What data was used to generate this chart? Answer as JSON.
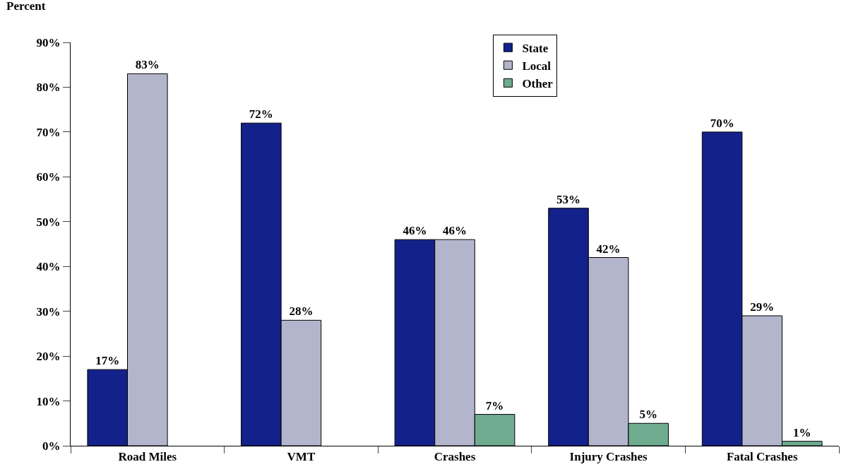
{
  "chart_data": {
    "type": "bar",
    "ylabel": "Percent",
    "categories": [
      "Road Miles",
      "VMT",
      "Crashes",
      "Injury Crashes",
      "Fatal Crashes"
    ],
    "series": [
      {
        "name": "State",
        "color": "#13218a",
        "values": [
          17,
          72,
          46,
          53,
          70
        ],
        "value_labels": [
          "17%",
          "72%",
          "46%",
          "53%",
          "70%"
        ]
      },
      {
        "name": "Local",
        "color": "#b3b5cc",
        "values": [
          83,
          28,
          46,
          42,
          29
        ],
        "value_labels": [
          "83%",
          "28%",
          "46%",
          "42%",
          "29%"
        ]
      },
      {
        "name": "Other",
        "color": "#6fab8f",
        "values": [
          null,
          null,
          7,
          5,
          1
        ],
        "value_labels": [
          null,
          null,
          "7%",
          "5%",
          "1%"
        ]
      }
    ],
    "ylim": [
      0,
      90
    ],
    "yticks": [
      {
        "value": 0,
        "label": "0%"
      },
      {
        "value": 10,
        "label": "10%"
      },
      {
        "value": 20,
        "label": "20%"
      },
      {
        "value": 30,
        "label": "30%"
      },
      {
        "value": 40,
        "label": "40%"
      },
      {
        "value": 50,
        "label": "50%"
      },
      {
        "value": 60,
        "label": "60%"
      },
      {
        "value": 70,
        "label": "70%"
      },
      {
        "value": 80,
        "label": "80%"
      },
      {
        "value": 90,
        "label": "90%"
      }
    ],
    "legend": "top"
  }
}
